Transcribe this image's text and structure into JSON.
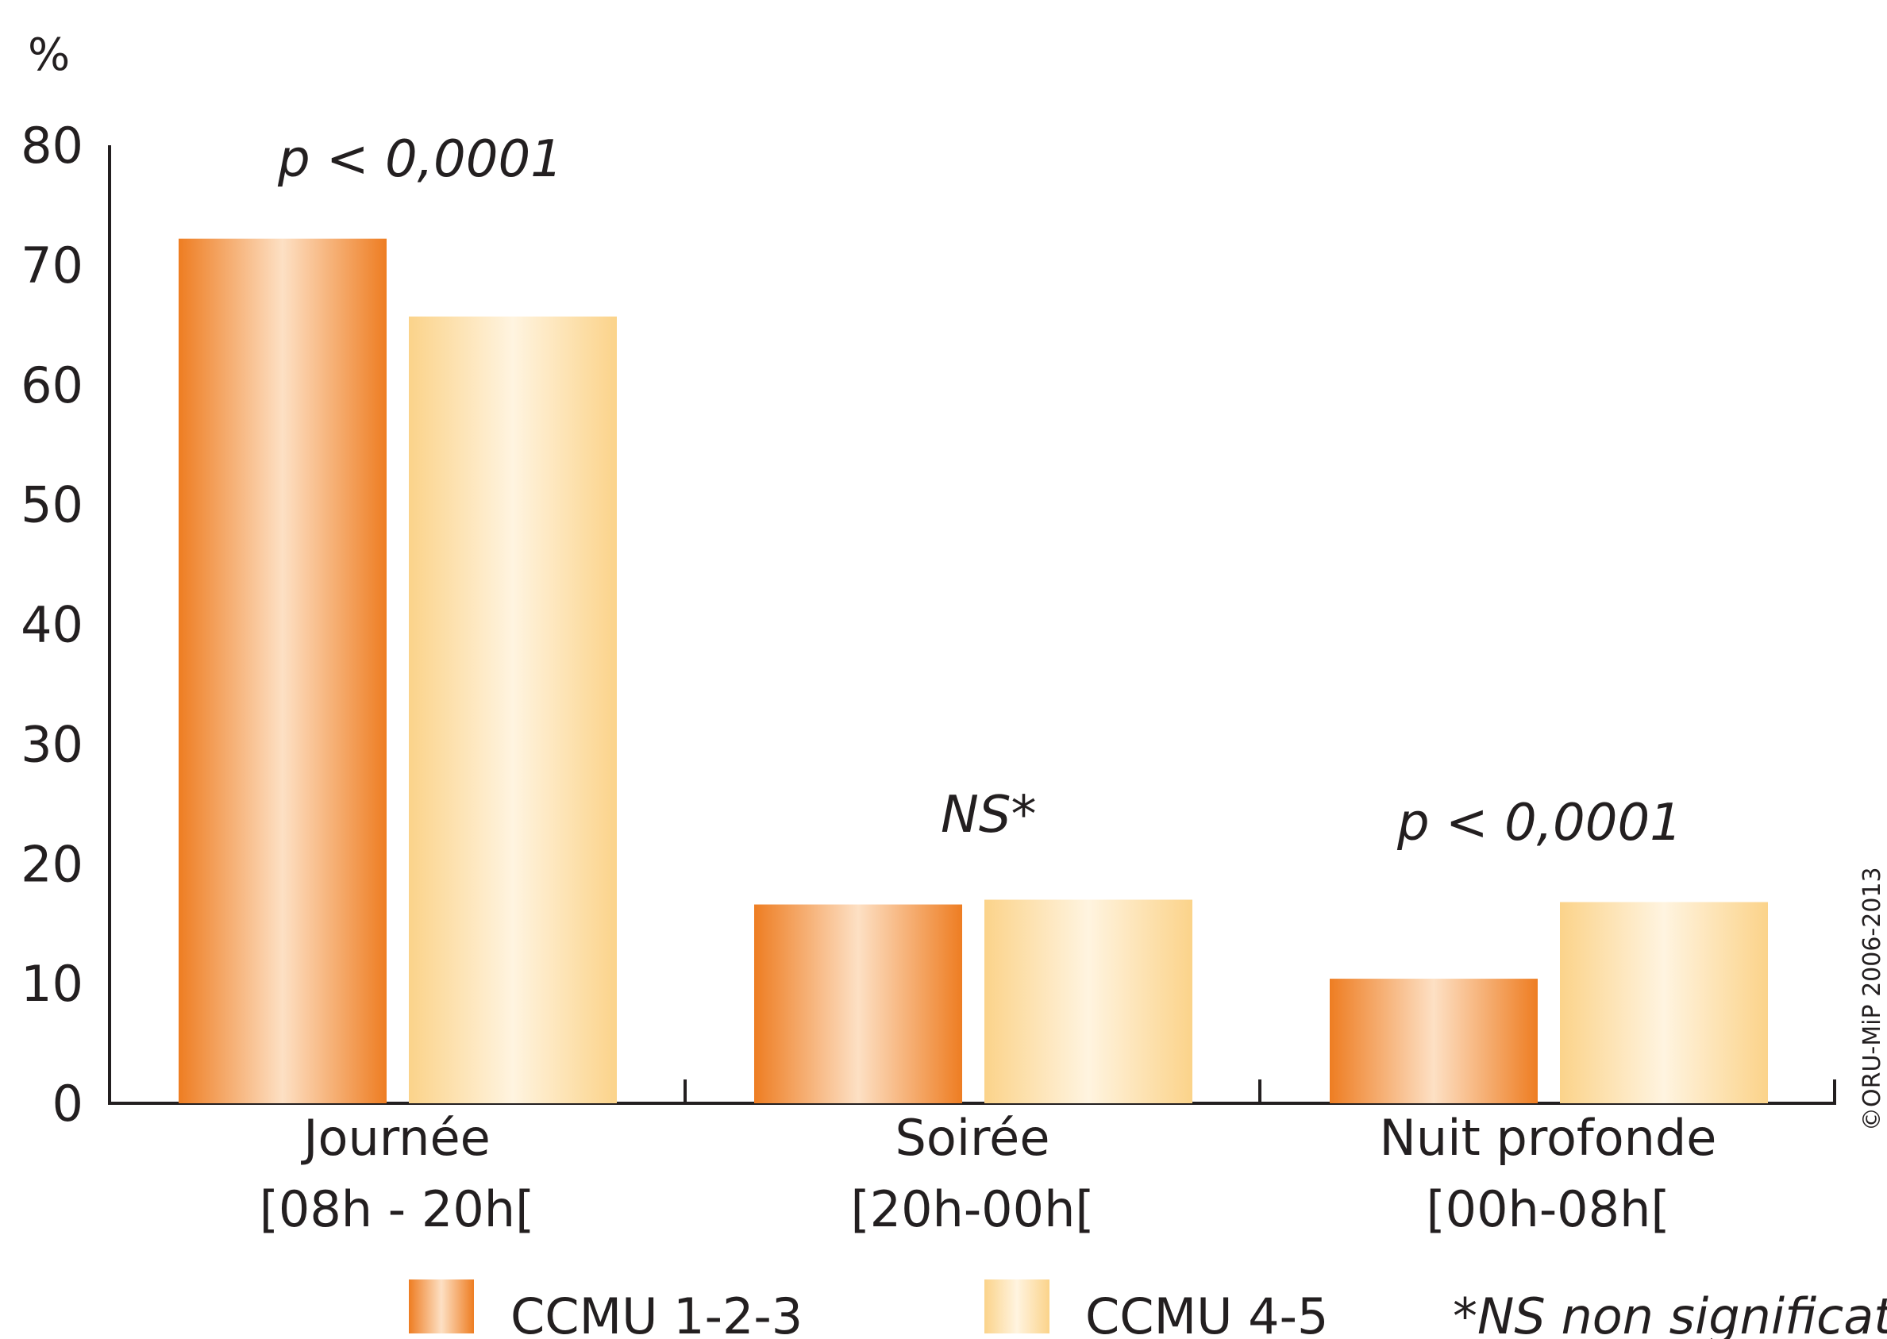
{
  "chart_data": {
    "type": "bar",
    "ylabel": "%",
    "ylim": [
      0,
      80
    ],
    "yticks": [
      "0",
      "10",
      "20",
      "30",
      "40",
      "50",
      "60",
      "70",
      "80"
    ],
    "categories": [
      {
        "line1": "Journée",
        "line2": "[08h - 20h["
      },
      {
        "line1": "Soirée",
        "line2": "[20h-00h["
      },
      {
        "line1": "Nuit profonde",
        "line2": "[00h-08h["
      }
    ],
    "series": [
      {
        "name": "CCMU 1-2-3",
        "values": [
          72.2,
          16.6,
          10.4
        ],
        "color_dark": "#ee7d22",
        "color_light": "#fde0c4"
      },
      {
        "name": "CCMU 4-5",
        "values": [
          65.7,
          17.0,
          16.8
        ],
        "color_dark": "#fbd38a",
        "color_light": "#fff4e0"
      }
    ],
    "annotations": [
      "p < 0,0001",
      "NS*",
      "p < 0,0001"
    ],
    "legend_note": "*NS non significatif",
    "legend_position": "bottom",
    "grid": false
  },
  "copyright": "©ORU-MiP 2006-2013",
  "colors": {
    "axis": "#231f20"
  }
}
